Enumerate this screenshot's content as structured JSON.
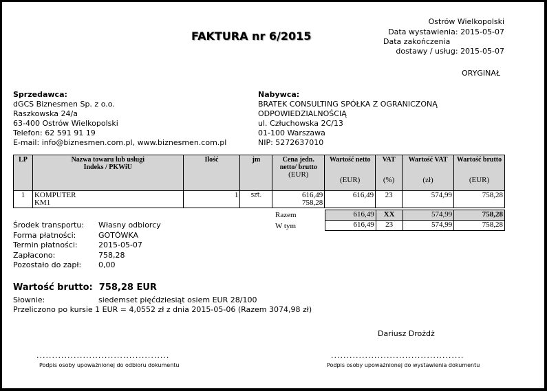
{
  "header": {
    "title": "FAKTURA  nr 6/2015",
    "place": "Ostrów Wielkopolski",
    "issue_date_label": "Data wystawienia:",
    "issue_date": "2015-05-07",
    "completion_label_1": "Data zakończenia",
    "completion_label_2": "dostawy / usług:",
    "completion_date": "2015-05-07",
    "copy": "ORYGINAŁ"
  },
  "seller": {
    "heading": "Sprzedawca:",
    "lines": [
      "dGCS Biznesmen Sp. z o.o.",
      "Raszkowska 24/a",
      "63-400 Ostrów Wielkopolski",
      "Telefon: 62 591 91 19",
      "E-mail: info@biznesmen.com.pl, www.biznesmen.com.pl"
    ]
  },
  "buyer": {
    "heading": "Nabywca:",
    "lines": [
      "BRATEK CONSULTING SPÓŁKA Z OGRANICZONĄ",
      "ODPOWIEDZIALNOŚCIĄ",
      "ul. Człuchowska 2C/13",
      "01-100 Warszawa",
      "NIP: 5272637010"
    ]
  },
  "table": {
    "headers": [
      {
        "t": "LP",
        "u": ""
      },
      {
        "t": "Nazwa towaru lub usługi\nIndeks / PKWiU",
        "u": ""
      },
      {
        "t": "Ilość",
        "u": ""
      },
      {
        "t": "jm",
        "u": ""
      },
      {
        "t": "Cena jedn. netto/ brutto",
        "u": "(EUR)"
      },
      {
        "t": "Wartość netto",
        "u": "(EUR)"
      },
      {
        "t": "VAT",
        "u": "(%)"
      },
      {
        "t": "Wartość VAT",
        "u": "(zł)"
      },
      {
        "t": "Wartość brutto",
        "u": "(EUR)"
      }
    ],
    "rows": [
      {
        "lp": "1",
        "name": "KOMPUTER",
        "index": "KM1",
        "qty": "1",
        "unit": "szt.",
        "price_net": "616,49",
        "price_gross": "758,28",
        "net": "616,49",
        "vat": "23",
        "vat_value": "574,99",
        "gross": "758,28"
      }
    ],
    "total": {
      "label": "Razem",
      "net": "616,49",
      "vat": "XX",
      "vat_value": "574,99",
      "gross": "758,28"
    },
    "of_which": {
      "label": "W tym",
      "net": "616,49",
      "vat": "23",
      "vat_value": "574,99",
      "gross": "758,28"
    }
  },
  "payment": [
    {
      "label": "Środek transportu:",
      "value": "Własny odbiorcy"
    },
    {
      "label": "Forma płatności:",
      "value": "GOTÓWKA"
    },
    {
      "label": "Termin płatności:",
      "value": "2015-05-07"
    },
    {
      "label": "Zapłacono:",
      "value": "758,28"
    },
    {
      "label": "Pozostało do zapł:",
      "value": "0,00"
    }
  ],
  "summary": {
    "gross_label": "Wartość brutto:",
    "gross_value": "758,28 EUR",
    "words_label": "Słownie:",
    "words": "siedemset pięćdziesiąt osiem EUR 28/100",
    "conversion": "Przeliczono po kursie 1 EUR = 4,0552 zł z dnia 2015-05-06 (Razem 3074,98 zł)"
  },
  "signatures": {
    "issuer_name": "Dariusz Drożdż",
    "dots": "...........................................",
    "left_label": "Podpis osoby upoważnionej do odbioru dokumentu",
    "right_label": "Podpis osoby upoważnionej do wystawienia dokumentu"
  }
}
